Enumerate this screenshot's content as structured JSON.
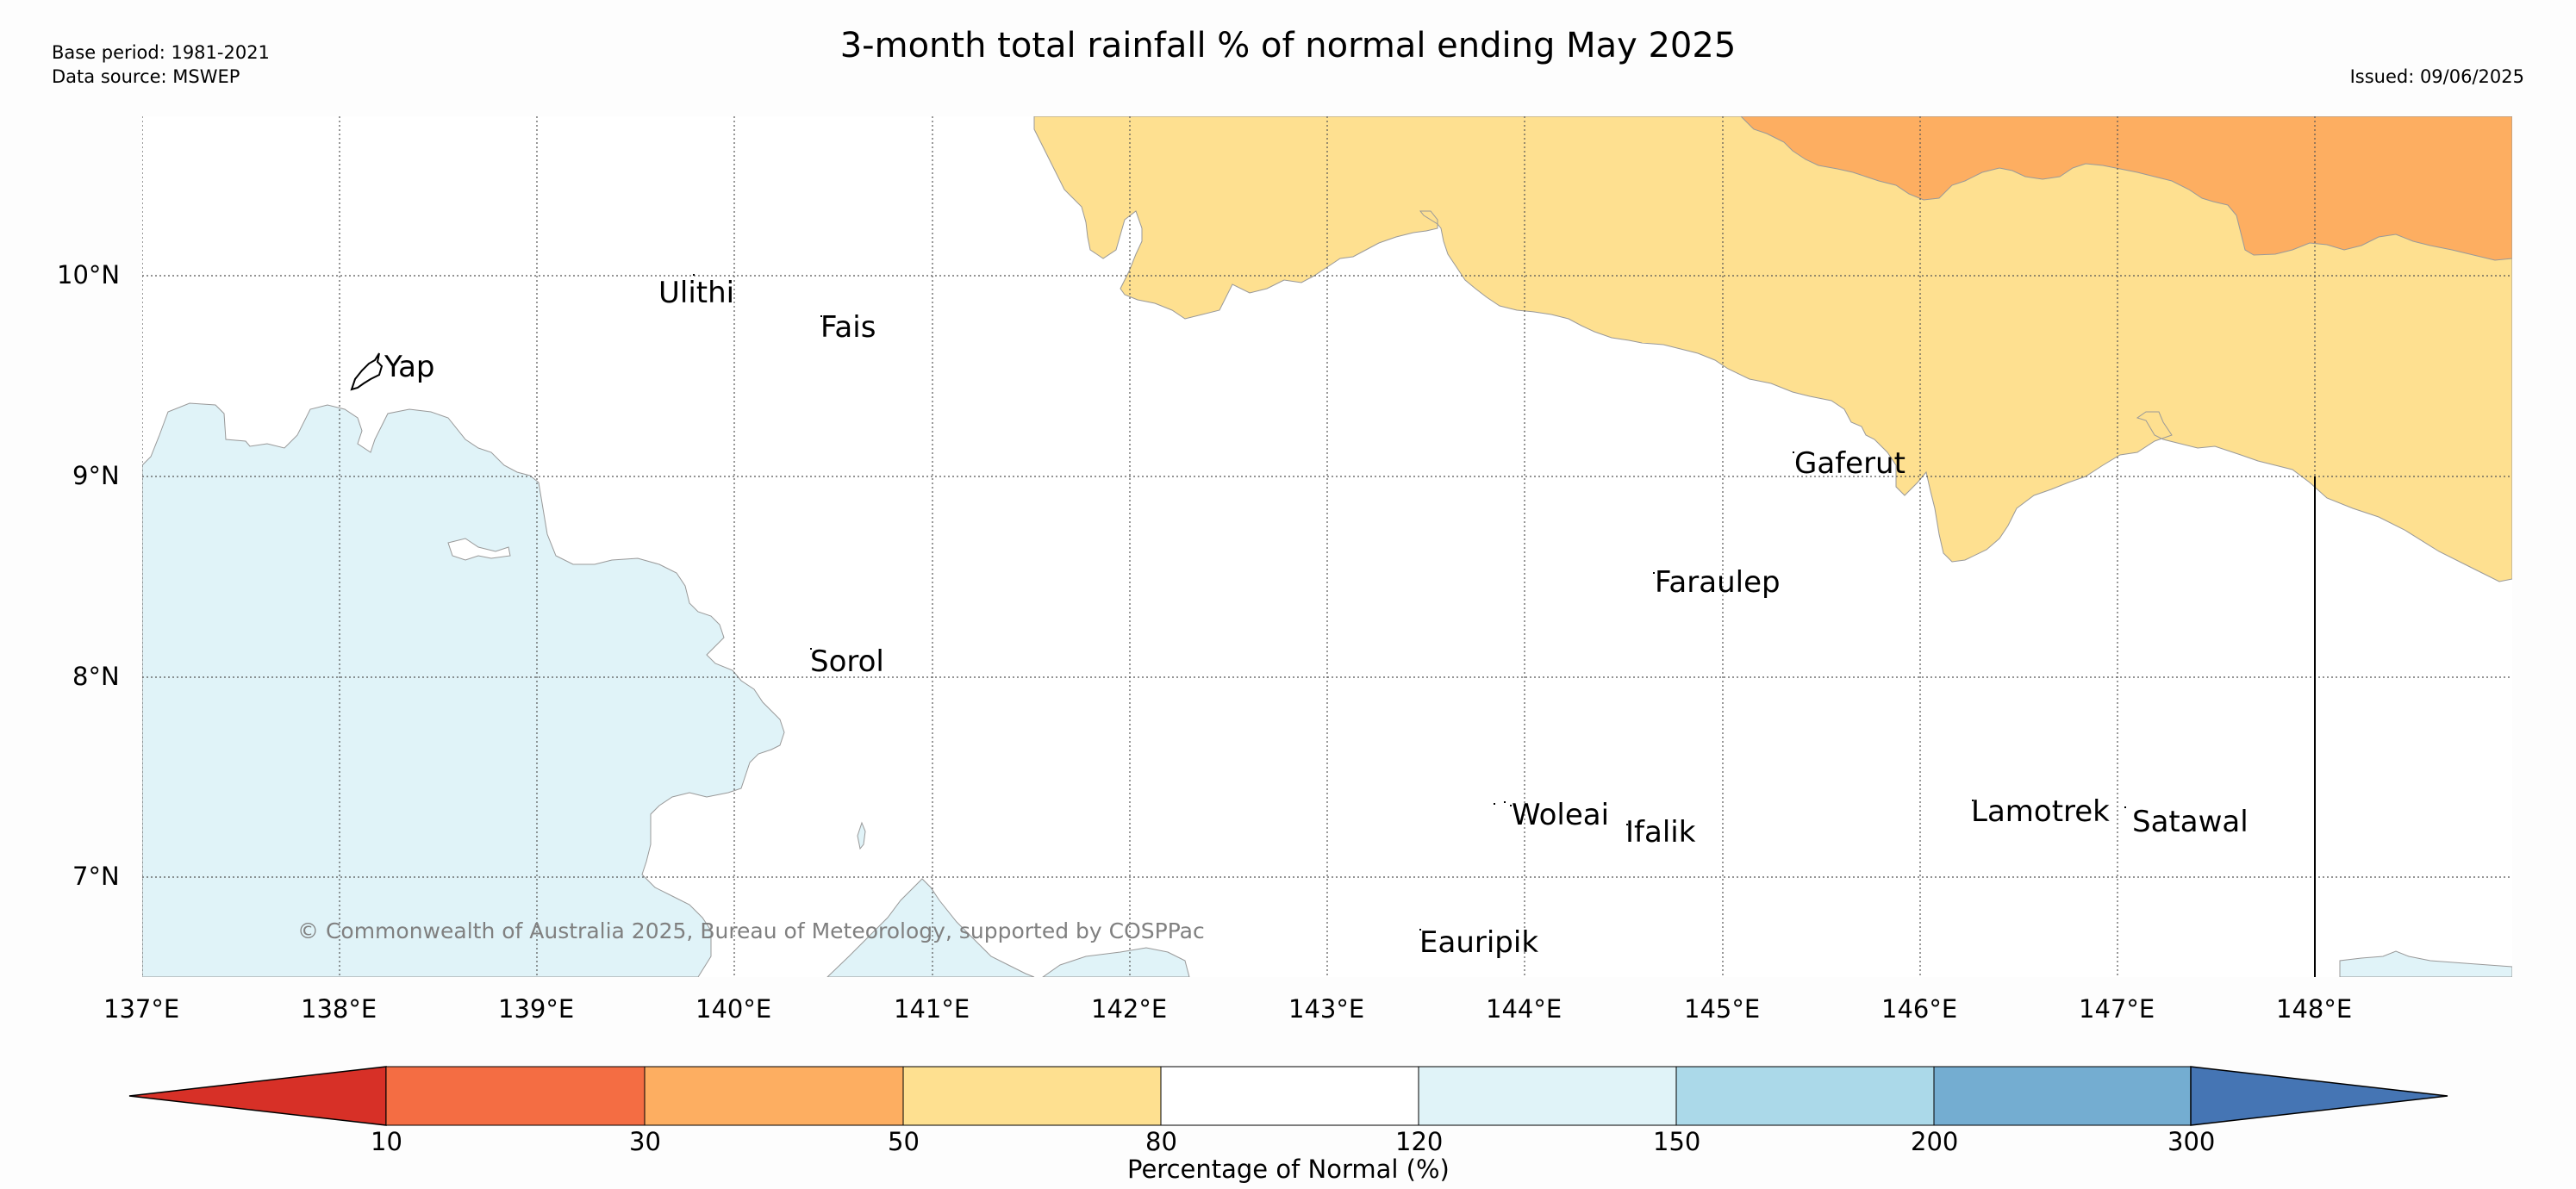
{
  "header": {
    "base_period": "Base period: 1981-2021",
    "data_source": "Data source: MSWEP",
    "title": "3-month total rainfall % of normal ending May 2025",
    "issued": "Issued: 09/06/2025"
  },
  "map": {
    "lat_labels": [
      "10°N",
      "9°N",
      "8°N",
      "7°N"
    ],
    "lon_labels": [
      "137°E",
      "138°E",
      "139°E",
      "140°E",
      "141°E",
      "142°E",
      "143°E",
      "144°E",
      "145°E",
      "146°E",
      "147°E",
      "148°E"
    ],
    "places": [
      "Yap",
      "Ulithi",
      "Fais",
      "Gaferut",
      "Faraulep",
      "Sorol",
      "Woleai",
      "Ifalik",
      "Lamotrek",
      "Satawal",
      "Eauripik"
    ],
    "copyright": "© Commonwealth of Australia 2025, Bureau of Meteorology, supported by COSPPac"
  },
  "legend": {
    "title": "Percentage of Normal (%)",
    "thresholds": [
      "10",
      "30",
      "50",
      "80",
      "120",
      "150",
      "200",
      "300"
    ],
    "colors": {
      "below_10": "#d73027",
      "10_30": "#f46d43",
      "30_50": "#fdae61",
      "50_80": "#fee090",
      "80_120": "#ffffff",
      "120_150": "#e0f3f8",
      "150_200": "#abd9e9",
      "200_300": "#74add1",
      "above_300": "#4575b4"
    }
  }
}
